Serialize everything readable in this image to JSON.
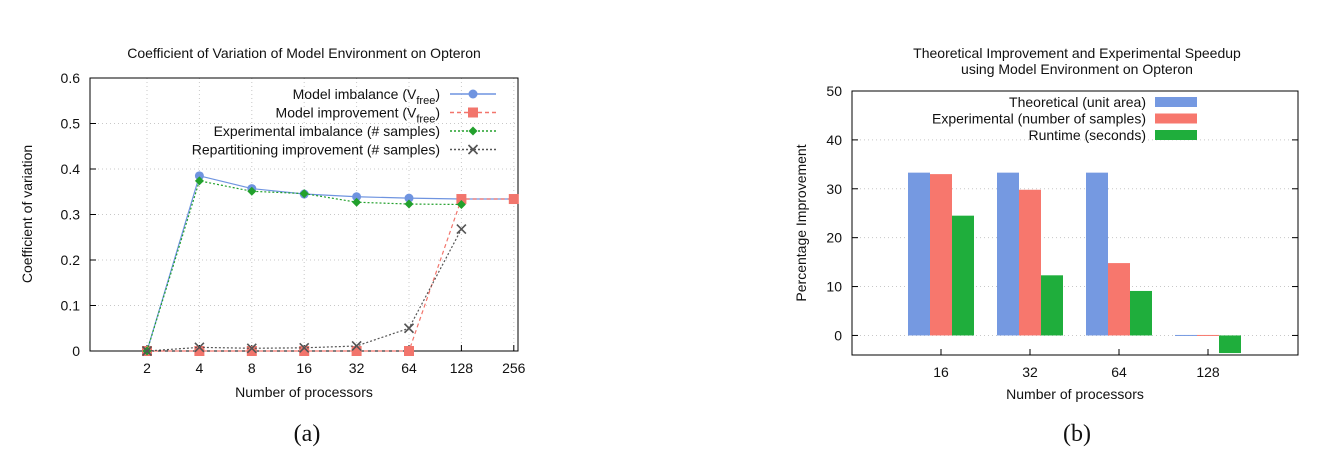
{
  "chart_data": [
    {
      "type": "line",
      "title": "Coefficient of Variation of Model Environment on Opteron",
      "xlabel": "Number of processors",
      "ylabel": "Coefficient of variation",
      "x_ticks": [
        "2",
        "4",
        "8",
        "16",
        "32",
        "64",
        "128",
        "256"
      ],
      "y_ticks": [
        "0",
        "0.1",
        "0.2",
        "0.3",
        "0.4",
        "0.5",
        "0.6"
      ],
      "ylim": [
        0,
        0.6
      ],
      "grid": true,
      "legend_position": "top-right",
      "caption": "(a)",
      "series": [
        {
          "name": "Model imbalance (V",
          "name_sub": "free",
          "name_suffix": ")",
          "color": "#6f94e0",
          "marker": "circle",
          "dash": "solid",
          "points": [
            {
              "x": "2",
              "y": 0.0
            },
            {
              "x": "4",
              "y": 0.385
            },
            {
              "x": "8",
              "y": 0.357
            },
            {
              "x": "16",
              "y": 0.345
            },
            {
              "x": "32",
              "y": 0.339
            },
            {
              "x": "64",
              "y": 0.336
            },
            {
              "x": "128",
              "y": 0.334
            },
            {
              "x": "256",
              "y": 0.334
            }
          ]
        },
        {
          "name": "Model improvement (V",
          "name_sub": "free",
          "name_suffix": ")",
          "color": "#f2756c",
          "marker": "square",
          "dash": "dashed",
          "points": [
            {
              "x": "2",
              "y": 0.0
            },
            {
              "x": "4",
              "y": 0.0
            },
            {
              "x": "8",
              "y": 0.0
            },
            {
              "x": "16",
              "y": 0.0
            },
            {
              "x": "32",
              "y": 0.0
            },
            {
              "x": "64",
              "y": 0.0
            },
            {
              "x": "128",
              "y": 0.334
            },
            {
              "x": "256",
              "y": 0.334
            }
          ]
        },
        {
          "name": "Experimental imbalance (# samples)",
          "color": "#22a02c",
          "marker": "diamond",
          "dash": "dotted",
          "points": [
            {
              "x": "2",
              "y": 0.0
            },
            {
              "x": "4",
              "y": 0.374
            },
            {
              "x": "8",
              "y": 0.351
            },
            {
              "x": "16",
              "y": 0.346
            },
            {
              "x": "32",
              "y": 0.327
            },
            {
              "x": "64",
              "y": 0.323
            },
            {
              "x": "128",
              "y": 0.322
            }
          ]
        },
        {
          "name": "Repartitioning improvement (# samples)",
          "color": "#555555",
          "marker": "x",
          "dash": "dotted",
          "points": [
            {
              "x": "2",
              "y": 0.0
            },
            {
              "x": "4",
              "y": 0.008
            },
            {
              "x": "8",
              "y": 0.006
            },
            {
              "x": "16",
              "y": 0.007
            },
            {
              "x": "32",
              "y": 0.011
            },
            {
              "x": "64",
              "y": 0.05
            },
            {
              "x": "128",
              "y": 0.268
            }
          ]
        }
      ]
    },
    {
      "type": "bar",
      "title": "Theoretical Improvement and Experimental Speedup",
      "title_line2": "using Model Environment on Opteron",
      "xlabel": "Number of processors",
      "ylabel": "Percentage Improvement",
      "categories": [
        "16",
        "32",
        "64",
        "128"
      ],
      "y_ticks": [
        "0",
        "10",
        "20",
        "30",
        "40",
        "50"
      ],
      "ylim": [
        -4,
        50
      ],
      "legend_position": "top-right",
      "caption": "(b)",
      "series": [
        {
          "name": "Theoretical (unit area)",
          "color": "#7599e1",
          "values": [
            33.3,
            33.3,
            33.3,
            0.0
          ]
        },
        {
          "name": "Experimental (number of samples)",
          "color": "#f7776d",
          "values": [
            33.0,
            29.8,
            14.8,
            0.0
          ]
        },
        {
          "name": "Runtime (seconds)",
          "color": "#1fae3c",
          "values": [
            24.5,
            12.3,
            9.1,
            -3.6
          ]
        }
      ]
    }
  ]
}
